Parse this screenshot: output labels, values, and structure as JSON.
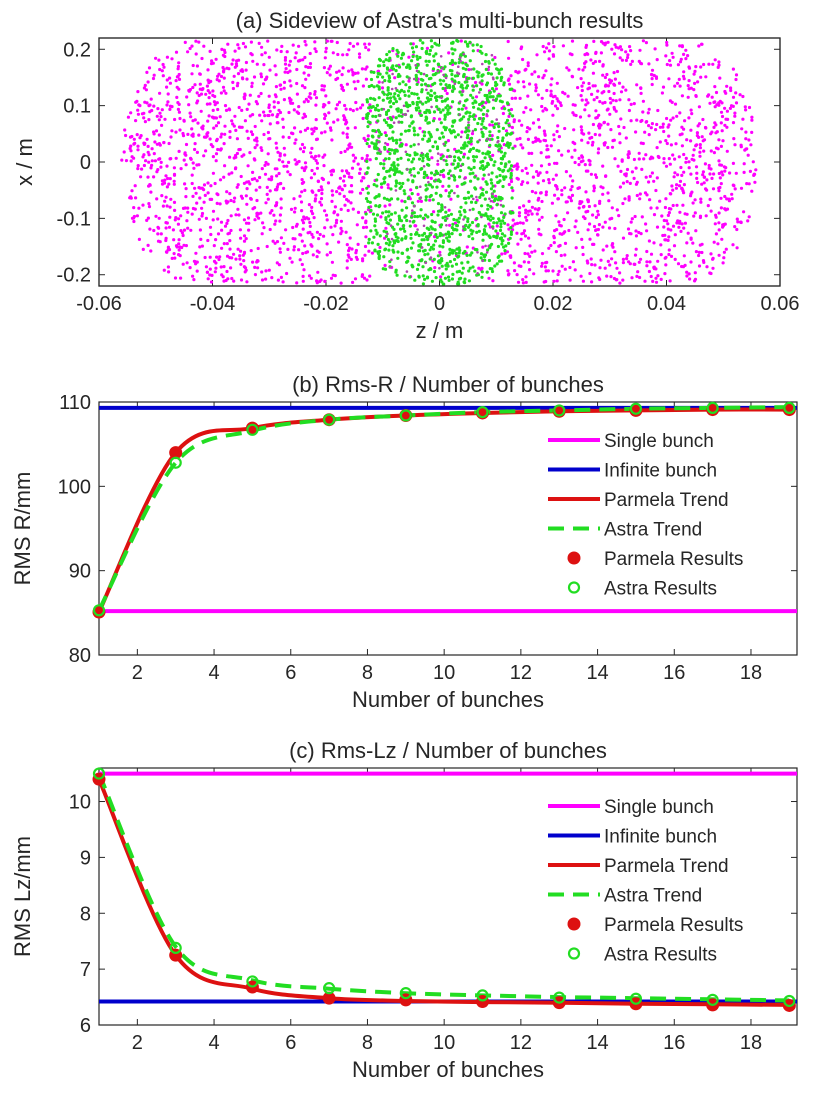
{
  "colors": {
    "magenta": "#ff00ff",
    "green": "#22dd22",
    "red": "#dd1111",
    "blue": "#0000cc",
    "axis": "#262626"
  },
  "chart_data": [
    {
      "type": "scatter",
      "title": "(a) Sideview of Astra's multi-bunch results",
      "xlabel": "z / m",
      "ylabel": "x / m",
      "xlim": [
        -0.06,
        0.06
      ],
      "ylim": [
        -0.22,
        0.22
      ],
      "xticks": [
        -0.06,
        -0.04,
        -0.02,
        0,
        0.02,
        0.04,
        0.06
      ],
      "xtick_labels": [
        "-0.06",
        "-0.04",
        "-0.02",
        "0",
        "0.02",
        "0.04",
        "0.06"
      ],
      "yticks": [
        -0.2,
        -0.1,
        0,
        0.1,
        0.2
      ],
      "ytick_labels": [
        "-0.2",
        "-0.1",
        "0",
        "0.1",
        "0.2"
      ],
      "series": [
        {
          "color": "magenta",
          "z_range": [
            -0.056,
            0.056
          ],
          "x_range": [
            -0.215,
            0.215
          ],
          "note_shape": "rounded capsule"
        },
        {
          "color": "green",
          "z_range": [
            -0.013,
            0.013
          ],
          "x_range": [
            -0.22,
            0.22
          ],
          "note_shape": "central band"
        }
      ]
    },
    {
      "type": "line",
      "title": "(b) Rms-R / Number of bunches",
      "xlabel": "Number of bunches",
      "ylabel": "RMS R/mm",
      "xlim": [
        1,
        19.2
      ],
      "ylim": [
        80,
        110
      ],
      "xticks": [
        2,
        4,
        6,
        8,
        10,
        12,
        14,
        16,
        18
      ],
      "xtick_labels": [
        "2",
        "4",
        "6",
        "8",
        "10",
        "12",
        "14",
        "16",
        "18"
      ],
      "yticks": [
        80,
        90,
        100,
        110
      ],
      "ytick_labels": [
        "80",
        "90",
        "100",
        "110"
      ],
      "legend_position": "right",
      "x": [
        1,
        3,
        5,
        7,
        9,
        11,
        13,
        15,
        17,
        19
      ],
      "series": [
        {
          "name": "Single bunch",
          "kind": "hline",
          "color": "magenta",
          "value": 85.2
        },
        {
          "name": "Infinite bunch",
          "kind": "hline",
          "color": "blue",
          "value": 109.3
        },
        {
          "name": "Parmela Trend",
          "kind": "curve",
          "color": "red",
          "values": [
            85.1,
            104.0,
            106.9,
            107.9,
            108.4,
            108.7,
            108.9,
            109.0,
            109.1,
            109.1
          ]
        },
        {
          "name": "Astra Trend",
          "kind": "dashed",
          "color": "green",
          "values": [
            85.3,
            102.8,
            106.6,
            107.9,
            108.4,
            108.8,
            109.0,
            109.2,
            109.3,
            109.4
          ]
        },
        {
          "name": "Parmela Results",
          "kind": "dots",
          "color": "red",
          "values": [
            85.1,
            104.0,
            106.9,
            107.9,
            108.4,
            108.7,
            108.9,
            109.0,
            109.1,
            109.1
          ]
        },
        {
          "name": "Astra Results",
          "kind": "circles",
          "color": "green",
          "values": [
            85.3,
            102.8,
            106.7,
            107.9,
            108.4,
            108.8,
            109.0,
            109.2,
            109.3,
            109.3
          ]
        }
      ]
    },
    {
      "type": "line",
      "title": "(c) Rms-Lz / Number of bunches",
      "xlabel": "Number of bunches",
      "ylabel": "RMS Lz/mm",
      "xlim": [
        1,
        19.2
      ],
      "ylim": [
        6,
        10.6
      ],
      "xticks": [
        2,
        4,
        6,
        8,
        10,
        12,
        14,
        16,
        18
      ],
      "xtick_labels": [
        "2",
        "4",
        "6",
        "8",
        "10",
        "12",
        "14",
        "16",
        "18"
      ],
      "yticks": [
        6,
        7,
        8,
        9,
        10
      ],
      "ytick_labels": [
        "6",
        "7",
        "8",
        "9",
        "10"
      ],
      "legend_position": "right",
      "x": [
        1,
        3,
        5,
        7,
        9,
        11,
        13,
        15,
        17,
        19
      ],
      "series": [
        {
          "name": "Single bunch",
          "kind": "hline",
          "color": "magenta",
          "value": 10.5
        },
        {
          "name": "Infinite bunch",
          "kind": "hline",
          "color": "blue",
          "value": 6.42
        },
        {
          "name": "Parmela Trend",
          "kind": "curve",
          "color": "red",
          "values": [
            10.4,
            7.25,
            6.65,
            6.48,
            6.43,
            6.41,
            6.4,
            6.38,
            6.37,
            6.36
          ]
        },
        {
          "name": "Astra Trend",
          "kind": "dashed",
          "color": "green",
          "values": [
            10.5,
            7.4,
            6.8,
            6.65,
            6.57,
            6.53,
            6.5,
            6.48,
            6.46,
            6.44
          ]
        },
        {
          "name": "Parmela Results",
          "kind": "dots",
          "color": "red",
          "values": [
            10.4,
            7.25,
            6.68,
            6.48,
            6.45,
            6.42,
            6.4,
            6.38,
            6.36,
            6.35
          ]
        },
        {
          "name": "Astra Results",
          "kind": "circles",
          "color": "green",
          "values": [
            10.5,
            7.38,
            6.78,
            6.66,
            6.57,
            6.53,
            6.49,
            6.47,
            6.45,
            6.43
          ]
        }
      ]
    }
  ]
}
